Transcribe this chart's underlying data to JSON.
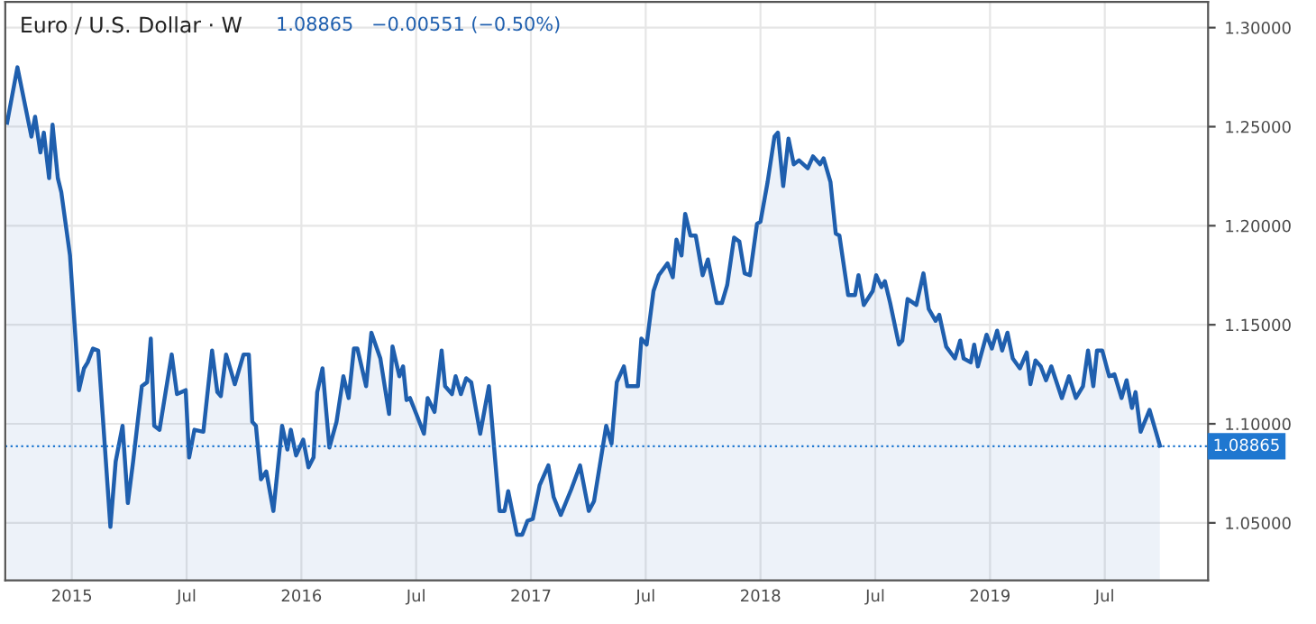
{
  "chart_data": {
    "type": "area",
    "title": "Euro / U.S. Dollar · W",
    "subtitle": "1.08865   −0.00551 (−0.50%)",
    "x": [
      2014.718,
      2014.763,
      2014.824,
      2014.84,
      2014.863,
      2014.878,
      2014.901,
      2014.916,
      2014.939,
      2014.954,
      2014.992,
      2015.031,
      2015.053,
      2015.069,
      2015.092,
      2015.115,
      2015.168,
      2015.191,
      2015.221,
      2015.244,
      2015.267,
      2015.305,
      2015.328,
      2015.344,
      2015.359,
      2015.382,
      2015.435,
      2015.458,
      2015.496,
      2015.511,
      2015.534,
      2015.573,
      2015.611,
      2015.634,
      2015.649,
      2015.672,
      2015.71,
      2015.748,
      2015.771,
      2015.786,
      2015.802,
      2015.824,
      2015.847,
      2015.878,
      2015.916,
      2015.939,
      2015.954,
      2015.977,
      2016.008,
      2016.031,
      2016.053,
      2016.069,
      2016.092,
      2016.122,
      2016.153,
      2016.183,
      2016.206,
      2016.229,
      2016.244,
      2016.282,
      2016.305,
      2016.344,
      2016.382,
      2016.397,
      2016.427,
      2016.443,
      2016.458,
      2016.473,
      2016.504,
      2016.534,
      2016.55,
      2016.58,
      2016.611,
      2016.626,
      2016.656,
      2016.672,
      2016.695,
      2016.718,
      2016.74,
      2016.779,
      2016.817,
      2016.863,
      2016.885,
      2016.901,
      2016.939,
      2016.962,
      2016.985,
      2017.008,
      2017.038,
      2017.076,
      2017.099,
      2017.13,
      2017.176,
      2017.214,
      2017.252,
      2017.275,
      2017.328,
      2017.351,
      2017.374,
      2017.405,
      2017.42,
      2017.466,
      2017.481,
      2017.504,
      2017.534,
      2017.557,
      2017.595,
      2017.618,
      2017.634,
      2017.656,
      2017.672,
      2017.695,
      2017.718,
      2017.748,
      2017.771,
      2017.809,
      2017.832,
      2017.855,
      2017.885,
      2017.908,
      2017.931,
      2017.954,
      2017.985,
      2018.0,
      2018.031,
      2018.061,
      2018.076,
      2018.099,
      2018.122,
      2018.145,
      2018.168,
      2018.206,
      2018.229,
      2018.26,
      2018.275,
      2018.305,
      2018.328,
      2018.344,
      2018.382,
      2018.412,
      2018.427,
      2018.45,
      2018.489,
      2018.504,
      2018.527,
      2018.542,
      2018.565,
      2018.603,
      2018.618,
      2018.641,
      2018.679,
      2018.71,
      2018.733,
      2018.763,
      2018.779,
      2018.809,
      2018.847,
      2018.87,
      2018.885,
      2018.916,
      2018.931,
      2018.947,
      2018.985,
      2019.008,
      2019.031,
      2019.053,
      2019.076,
      2019.099,
      2019.13,
      2019.16,
      2019.176,
      2019.198,
      2019.221,
      2019.244,
      2019.267,
      2019.313,
      2019.344,
      2019.374,
      2019.405,
      2019.427,
      2019.45,
      2019.466,
      2019.489,
      2019.519,
      2019.542,
      2019.573,
      2019.595,
      2019.618,
      2019.634,
      2019.656,
      2019.695,
      2019.725,
      2019.74
    ],
    "series": [
      {
        "color": "#1f5fae",
        "values": [
          1.252,
          1.28,
          1.245,
          1.255,
          1.237,
          1.247,
          1.224,
          1.251,
          1.224,
          1.217,
          1.185,
          1.117,
          1.128,
          1.131,
          1.138,
          1.137,
          1.048,
          1.081,
          1.099,
          1.06,
          1.081,
          1.119,
          1.121,
          1.143,
          1.099,
          1.097,
          1.135,
          1.115,
          1.117,
          1.083,
          1.097,
          1.096,
          1.137,
          1.116,
          1.114,
          1.135,
          1.12,
          1.135,
          1.135,
          1.101,
          1.099,
          1.072,
          1.076,
          1.056,
          1.099,
          1.087,
          1.097,
          1.084,
          1.092,
          1.078,
          1.083,
          1.116,
          1.128,
          1.088,
          1.101,
          1.124,
          1.113,
          1.138,
          1.138,
          1.119,
          1.146,
          1.133,
          1.105,
          1.139,
          1.124,
          1.129,
          1.112,
          1.113,
          1.104,
          1.095,
          1.113,
          1.106,
          1.137,
          1.119,
          1.115,
          1.124,
          1.115,
          1.123,
          1.121,
          1.095,
          1.119,
          1.056,
          1.056,
          1.066,
          1.044,
          1.044,
          1.051,
          1.052,
          1.069,
          1.079,
          1.063,
          1.054,
          1.067,
          1.079,
          1.056,
          1.061,
          1.099,
          1.09,
          1.121,
          1.129,
          1.119,
          1.119,
          1.143,
          1.14,
          1.167,
          1.175,
          1.181,
          1.174,
          1.193,
          1.185,
          1.206,
          1.195,
          1.195,
          1.175,
          1.183,
          1.161,
          1.161,
          1.17,
          1.194,
          1.192,
          1.176,
          1.175,
          1.201,
          1.202,
          1.222,
          1.245,
          1.247,
          1.22,
          1.244,
          1.231,
          1.233,
          1.229,
          1.235,
          1.231,
          1.234,
          1.222,
          1.196,
          1.195,
          1.165,
          1.165,
          1.175,
          1.16,
          1.167,
          1.175,
          1.169,
          1.172,
          1.161,
          1.14,
          1.142,
          1.163,
          1.16,
          1.176,
          1.158,
          1.152,
          1.155,
          1.139,
          1.133,
          1.142,
          1.133,
          1.131,
          1.14,
          1.129,
          1.145,
          1.138,
          1.147,
          1.137,
          1.146,
          1.133,
          1.128,
          1.136,
          1.12,
          1.132,
          1.129,
          1.122,
          1.129,
          1.113,
          1.124,
          1.113,
          1.119,
          1.137,
          1.119,
          1.137,
          1.137,
          1.124,
          1.125,
          1.113,
          1.122,
          1.108,
          1.116,
          1.096,
          1.107,
          1.095,
          1.089
        ]
      }
    ],
    "xlim": [
      2014.71,
      2019.95
    ],
    "ylim": [
      1.021,
      1.313
    ],
    "xticks": [
      2015,
      {
        "value": 2015.5,
        "label": "Jul"
      },
      2016,
      {
        "value": 2016.5,
        "label": "Jul"
      },
      2017,
      {
        "value": 2017.5,
        "label": "Jul"
      },
      2018,
      {
        "value": 2018.5,
        "label": "Jul"
      },
      2019,
      {
        "value": 2019.5,
        "label": "Jul"
      }
    ],
    "yticks": [
      {
        "value": 1.05,
        "label": "1.05000"
      },
      {
        "value": 1.1,
        "label": "1.10000"
      },
      {
        "value": 1.15,
        "label": "1.15000"
      },
      {
        "value": 1.2,
        "label": "1.20000"
      },
      {
        "value": 1.25,
        "label": "1.25000"
      },
      {
        "value": 1.3,
        "label": "1.30000"
      }
    ],
    "ref_lines": [
      {
        "axis": "y",
        "value": 1.08865,
        "label": "1.08865",
        "color": "#1f77d0",
        "line_style": "dotted"
      }
    ],
    "grid": true,
    "line_style": "solid",
    "marker": "none"
  }
}
